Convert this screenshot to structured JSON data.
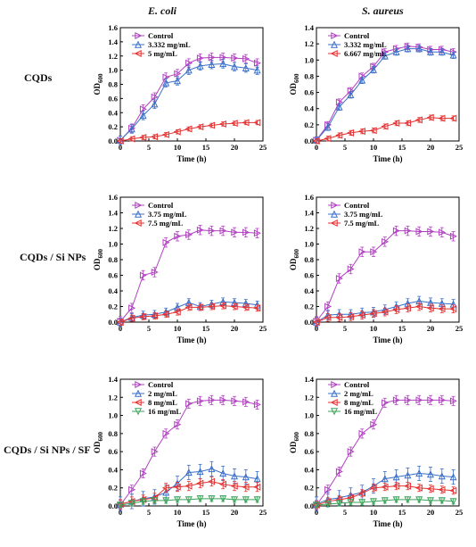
{
  "figure": {
    "column_titles": [
      "E. coli",
      "S. aureus"
    ],
    "row_labels": [
      "CQDs",
      "CQDs / Si NPs",
      "CQDs / Si NPs / SF"
    ],
    "ylabel": "OD",
    "ylabel_sub": "600",
    "xlabel": "Time (h)"
  },
  "colors": {
    "control": "#b040c0",
    "blue": "#3a6fc8",
    "red": "#e53030",
    "green": "#3aa35a",
    "lightblue": "#8ab4e8"
  },
  "chart_data": [
    {
      "type": "line",
      "panel": "CQDs - E. coli",
      "xlabel": "Time (h)",
      "ylabel": "OD600",
      "xlim": [
        0,
        25
      ],
      "ylim": [
        0,
        1.6
      ],
      "xticks": [
        0,
        5,
        10,
        15,
        20,
        25
      ],
      "yticks": [
        0,
        0.2,
        0.4,
        0.6,
        0.8,
        1.0,
        1.2,
        1.4,
        1.6
      ],
      "x": [
        0,
        2,
        4,
        6,
        8,
        10,
        12,
        14,
        16,
        18,
        20,
        22,
        24
      ],
      "series": [
        {
          "name": "Control",
          "color": "control",
          "marker": "tri-right",
          "values": [
            0.01,
            0.18,
            0.45,
            0.62,
            0.9,
            0.95,
            1.1,
            1.17,
            1.18,
            1.18,
            1.17,
            1.16,
            1.1
          ],
          "err": 0.06
        },
        {
          "name": "3.332 mg/mL",
          "color": "blue",
          "marker": "tri-up",
          "values": [
            0.01,
            0.17,
            0.36,
            0.52,
            0.82,
            0.85,
            1.0,
            1.06,
            1.08,
            1.09,
            1.05,
            1.03,
            1.0
          ],
          "err": 0.06
        },
        {
          "name": "5 mg/mL",
          "color": "red",
          "marker": "tri-left",
          "values": [
            0.0,
            0.03,
            0.05,
            0.06,
            0.09,
            0.13,
            0.17,
            0.2,
            0.22,
            0.24,
            0.25,
            0.26,
            0.26
          ],
          "err": 0.03
        }
      ]
    },
    {
      "type": "line",
      "panel": "CQDs - S. aureus",
      "xlabel": "Time (h)",
      "ylabel": "OD600",
      "xlim": [
        0,
        25
      ],
      "ylim": [
        0,
        1.4
      ],
      "xticks": [
        0,
        5,
        10,
        15,
        20,
        25
      ],
      "yticks": [
        0,
        0.2,
        0.4,
        0.6,
        0.8,
        1.0,
        1.2,
        1.4
      ],
      "x": [
        0,
        2,
        4,
        6,
        8,
        10,
        12,
        14,
        16,
        18,
        20,
        22,
        24
      ],
      "series": [
        {
          "name": "Control",
          "color": "control",
          "marker": "tri-right",
          "values": [
            0.01,
            0.2,
            0.48,
            0.62,
            0.8,
            0.92,
            1.1,
            1.14,
            1.17,
            1.16,
            1.13,
            1.13,
            1.1
          ],
          "err": 0.04
        },
        {
          "name": "3.332 mg/mL",
          "color": "blue",
          "marker": "tri-up",
          "values": [
            0.01,
            0.17,
            0.42,
            0.57,
            0.75,
            0.88,
            1.05,
            1.1,
            1.14,
            1.14,
            1.1,
            1.1,
            1.06
          ],
          "err": 0.04
        },
        {
          "name": "6.667 mg/mL",
          "color": "red",
          "marker": "tri-left",
          "values": [
            0.0,
            0.03,
            0.07,
            0.1,
            0.12,
            0.13,
            0.18,
            0.22,
            0.22,
            0.26,
            0.29,
            0.28,
            0.28
          ],
          "err": 0.03
        }
      ]
    },
    {
      "type": "line",
      "panel": "CQDs / Si NPs - E. coli",
      "xlabel": "Time (h)",
      "ylabel": "OD600",
      "xlim": [
        0,
        25
      ],
      "ylim": [
        0,
        1.6
      ],
      "xticks": [
        0,
        5,
        10,
        15,
        20,
        25
      ],
      "yticks": [
        0,
        0.2,
        0.4,
        0.6,
        0.8,
        1.0,
        1.2,
        1.4,
        1.6
      ],
      "x": [
        0,
        2,
        4,
        6,
        8,
        10,
        12,
        14,
        16,
        18,
        20,
        22,
        24
      ],
      "series": [
        {
          "name": "Control",
          "color": "control",
          "marker": "tri-right",
          "values": [
            0.01,
            0.18,
            0.6,
            0.64,
            1.02,
            1.1,
            1.12,
            1.18,
            1.17,
            1.17,
            1.15,
            1.15,
            1.14
          ],
          "err": 0.06
        },
        {
          "name": "3.75 mg/mL",
          "color": "blue",
          "marker": "tri-up",
          "values": [
            0.0,
            0.06,
            0.09,
            0.1,
            0.13,
            0.19,
            0.25,
            0.2,
            0.23,
            0.26,
            0.25,
            0.24,
            0.22
          ],
          "err": 0.05
        },
        {
          "name": "7.5 mg/mL",
          "color": "red",
          "marker": "tri-left",
          "values": [
            0.0,
            0.05,
            0.07,
            0.08,
            0.1,
            0.13,
            0.19,
            0.19,
            0.2,
            0.21,
            0.2,
            0.19,
            0.18
          ],
          "err": 0.04
        }
      ]
    },
    {
      "type": "line",
      "panel": "CQDs / Si NPs - S. aureus",
      "xlabel": "Time (h)",
      "ylabel": "OD600",
      "xlim": [
        0,
        25
      ],
      "ylim": [
        0,
        1.6
      ],
      "xticks": [
        0,
        5,
        10,
        15,
        20,
        25
      ],
      "yticks": [
        0,
        0.2,
        0.4,
        0.6,
        0.8,
        1.0,
        1.2,
        1.4,
        1.6
      ],
      "x": [
        0,
        2,
        4,
        6,
        8,
        10,
        12,
        14,
        16,
        18,
        20,
        22,
        24
      ],
      "series": [
        {
          "name": "Control",
          "color": "control",
          "marker": "tri-right",
          "values": [
            0.01,
            0.2,
            0.56,
            0.68,
            0.9,
            0.9,
            1.03,
            1.17,
            1.17,
            1.16,
            1.16,
            1.15,
            1.1
          ],
          "err": 0.06
        },
        {
          "name": "3.75 mg/mL",
          "color": "blue",
          "marker": "tri-up",
          "values": [
            0.0,
            0.09,
            0.1,
            0.1,
            0.12,
            0.13,
            0.16,
            0.2,
            0.24,
            0.27,
            0.25,
            0.24,
            0.23
          ],
          "err": 0.06
        },
        {
          "name": "7.5 mg/mL",
          "color": "red",
          "marker": "tri-left",
          "values": [
            0.0,
            0.06,
            0.06,
            0.07,
            0.09,
            0.11,
            0.13,
            0.16,
            0.18,
            0.2,
            0.18,
            0.17,
            0.17
          ],
          "err": 0.05
        }
      ]
    },
    {
      "type": "line",
      "panel": "CQDs / Si NPs / SF - E. coli",
      "xlabel": "Time (h)",
      "ylabel": "OD600",
      "xlim": [
        0,
        25
      ],
      "ylim": [
        0,
        1.4
      ],
      "xticks": [
        0,
        5,
        10,
        15,
        20,
        25
      ],
      "yticks": [
        0,
        0.2,
        0.4,
        0.6,
        0.8,
        1.0,
        1.2,
        1.4
      ],
      "x": [
        0,
        2,
        4,
        6,
        8,
        10,
        12,
        14,
        16,
        18,
        20,
        22,
        24
      ],
      "series": [
        {
          "name": "Control",
          "color": "control",
          "marker": "tri-right",
          "values": [
            0.01,
            0.18,
            0.36,
            0.6,
            0.8,
            0.9,
            1.13,
            1.16,
            1.17,
            1.17,
            1.16,
            1.15,
            1.12
          ],
          "err": 0.05
        },
        {
          "name": "2 mg/mL",
          "color": "blue",
          "marker": "tri-up",
          "values": [
            0.02,
            0.05,
            0.08,
            0.1,
            0.15,
            0.25,
            0.37,
            0.38,
            0.41,
            0.36,
            0.33,
            0.32,
            0.3
          ],
          "err": 0.08
        },
        {
          "name": "8 mg/mL",
          "color": "red",
          "marker": "tri-left",
          "values": [
            0.02,
            0.05,
            0.07,
            0.09,
            0.2,
            0.21,
            0.22,
            0.25,
            0.27,
            0.24,
            0.22,
            0.21,
            0.21
          ],
          "err": 0.05
        },
        {
          "name": "16 mg/mL",
          "color": "green",
          "marker": "tri-down",
          "values": [
            0.01,
            0.03,
            0.05,
            0.06,
            0.06,
            0.07,
            0.07,
            0.08,
            0.08,
            0.08,
            0.07,
            0.07,
            0.07
          ],
          "err": 0.03
        }
      ]
    },
    {
      "type": "line",
      "panel": "CQDs / Si NPs / SF - S. aureus",
      "xlabel": "Time (h)",
      "ylabel": "OD600",
      "xlim": [
        0,
        25
      ],
      "ylim": [
        0,
        1.4
      ],
      "xticks": [
        0,
        5,
        10,
        15,
        20,
        25
      ],
      "yticks": [
        0,
        0.2,
        0.4,
        0.6,
        0.8,
        1.0,
        1.2,
        1.4
      ],
      "x": [
        0,
        2,
        4,
        6,
        8,
        10,
        12,
        14,
        16,
        18,
        20,
        22,
        24
      ],
      "series": [
        {
          "name": "Control",
          "color": "control",
          "marker": "tri-right",
          "values": [
            0.01,
            0.18,
            0.38,
            0.6,
            0.8,
            0.9,
            1.14,
            1.17,
            1.17,
            1.17,
            1.17,
            1.17,
            1.16
          ],
          "err": 0.05
        },
        {
          "name": "2 mg/mL",
          "color": "blue",
          "marker": "tri-up",
          "values": [
            0.02,
            0.07,
            0.09,
            0.12,
            0.15,
            0.22,
            0.3,
            0.32,
            0.34,
            0.36,
            0.35,
            0.33,
            0.32
          ],
          "err": 0.08
        },
        {
          "name": "8 mg/mL",
          "color": "red",
          "marker": "tri-left",
          "values": [
            0.01,
            0.05,
            0.07,
            0.09,
            0.14,
            0.2,
            0.21,
            0.22,
            0.22,
            0.2,
            0.19,
            0.18,
            0.17
          ],
          "err": 0.04
        },
        {
          "name": "16 mg/mL",
          "color": "green",
          "marker": "tri-down",
          "values": [
            0.01,
            0.02,
            0.03,
            0.04,
            0.04,
            0.05,
            0.06,
            0.07,
            0.07,
            0.07,
            0.06,
            0.06,
            0.05
          ],
          "err": 0.03
        }
      ]
    }
  ]
}
